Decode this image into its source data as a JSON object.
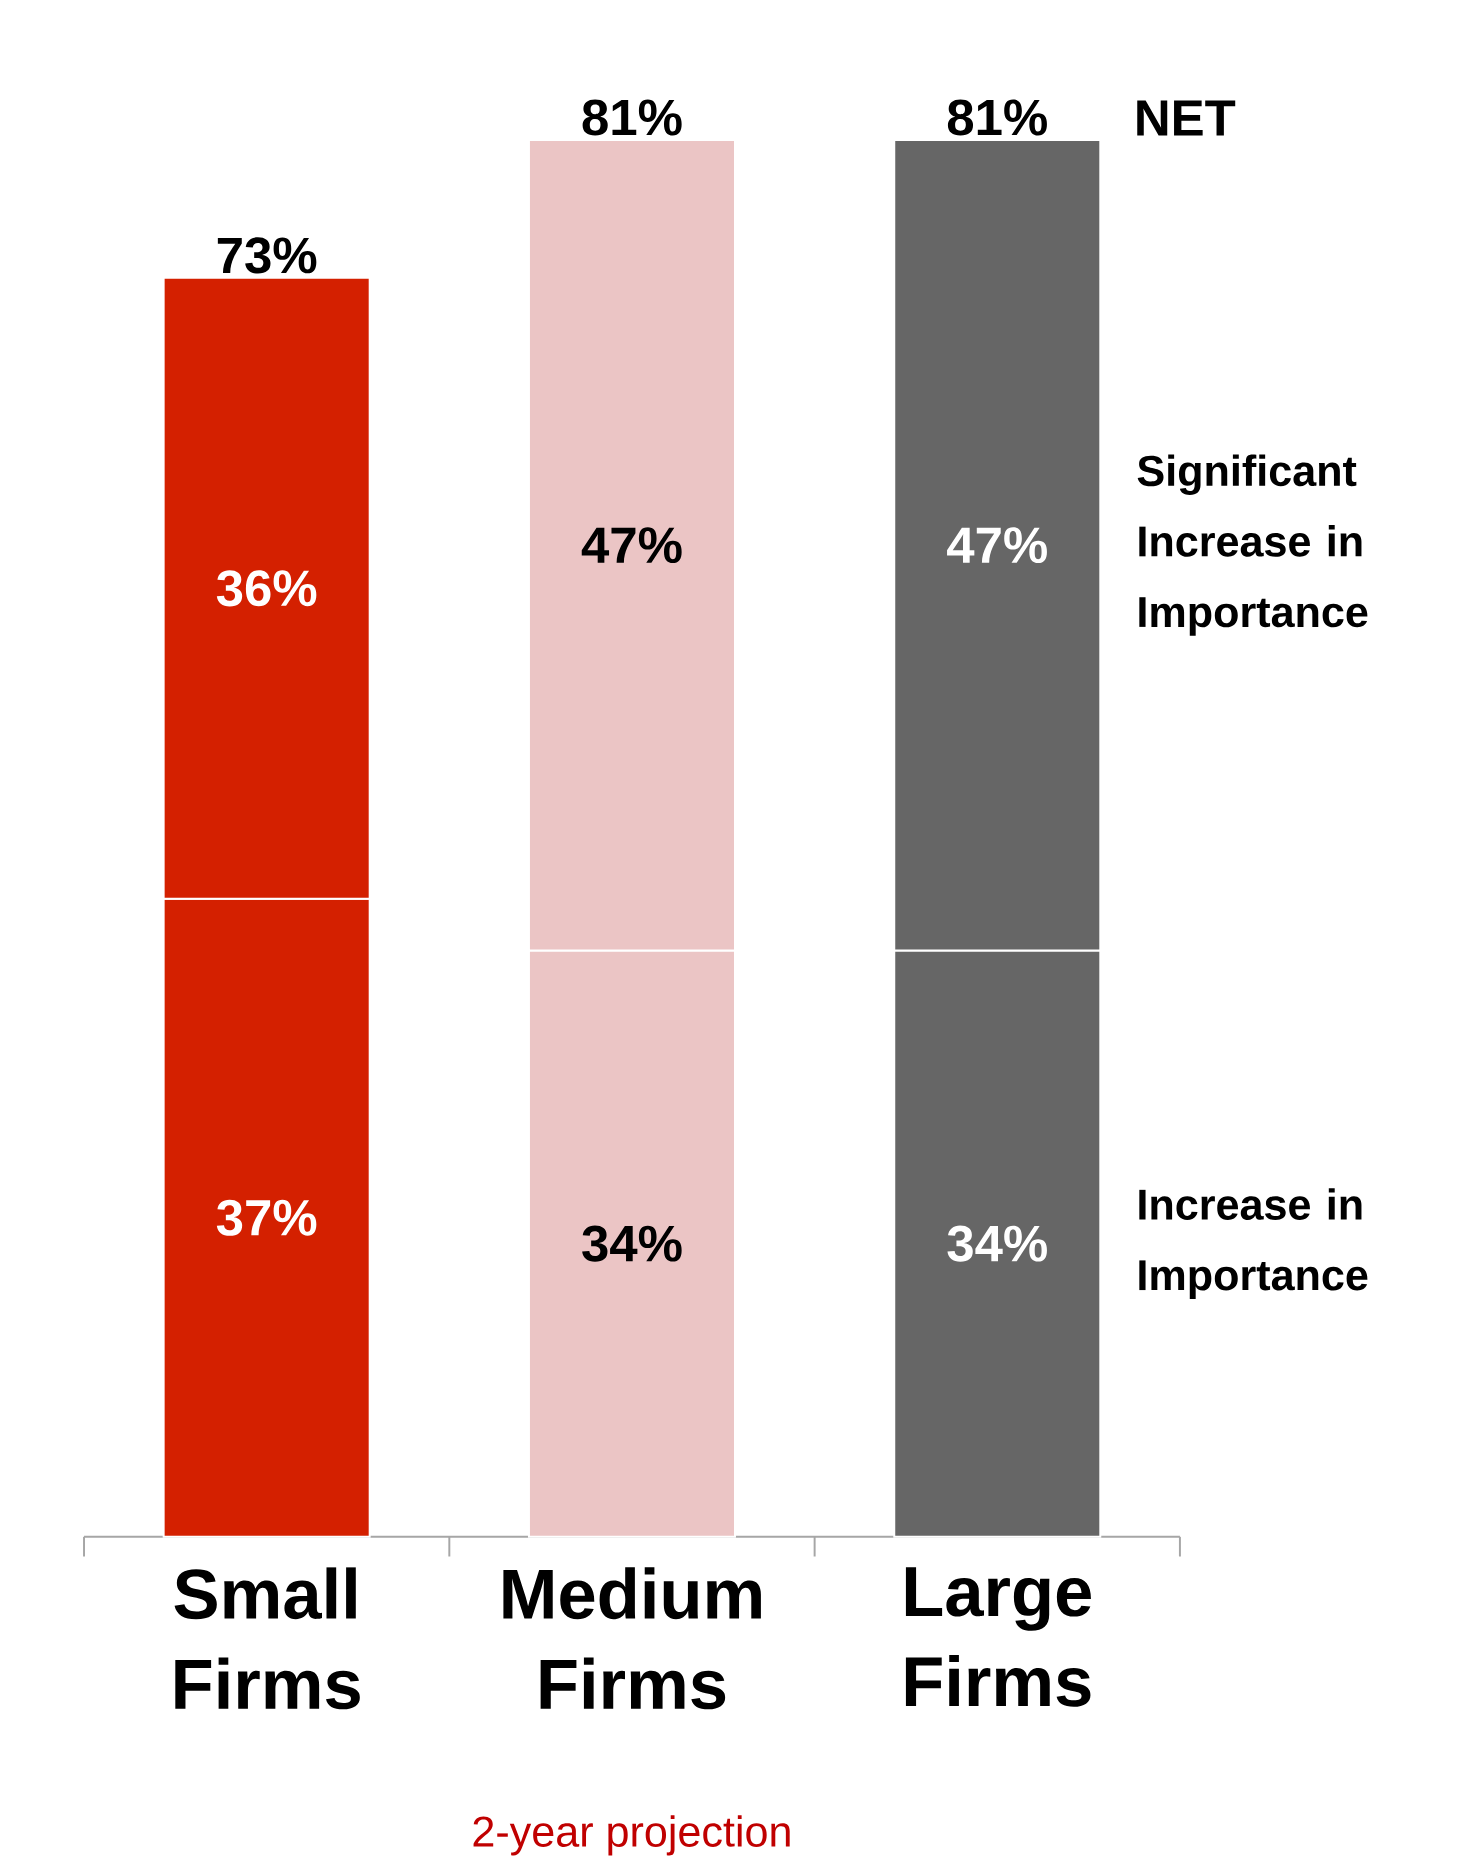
{
  "chart_data": {
    "type": "bar",
    "stacked": true,
    "categories": [
      "Small Firms",
      "Medium Firms",
      "Large Firms"
    ],
    "series": [
      {
        "name": "Increase in Importance",
        "colors": [
          "#d42000",
          "#ebc5c5",
          "#666666"
        ],
        "values": [
          37,
          34,
          34
        ],
        "value_labels": [
          "37%",
          "34%",
          "34%"
        ]
      },
      {
        "name": "Significant Increase in Importance",
        "colors": [
          "#d42000",
          "#ebc5c5",
          "#666666"
        ],
        "values": [
          36,
          47,
          47
        ],
        "value_labels": [
          "36%",
          "47%",
          "47%"
        ]
      }
    ],
    "totals": [
      "73%",
      "81%",
      "81%"
    ],
    "annotations": [
      "NET",
      "2-year projection"
    ]
  }
}
